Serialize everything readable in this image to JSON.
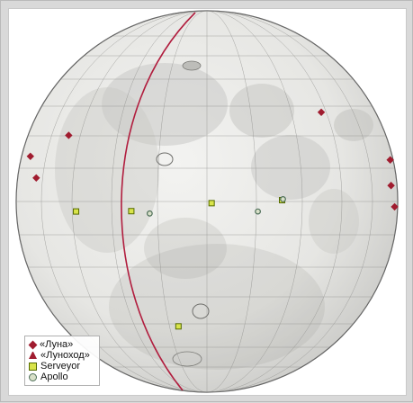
{
  "colors": {
    "background": "#d9d9d9",
    "panel": "#ffffff",
    "globe_fill": "#e9e9e7",
    "globe_stroke": "#5c5c5c",
    "mare": "#b8b8b6",
    "meridian": "#b11d3e",
    "luna": "#a01c2f",
    "lunokhod": "#a01c2f",
    "surveyor_fill": "#d9e44a",
    "surveyor_stroke": "#556b00",
    "apollo_fill": "#d8e0c8",
    "apollo_stroke": "#4f6f59"
  },
  "map": {
    "projection": "orthographic view of the lunar near side",
    "graticule": true
  },
  "legend": {
    "items": [
      {
        "key": "luna",
        "symbol": "diamond",
        "label": "«Луна»"
      },
      {
        "key": "lunokhod",
        "symbol": "triangle",
        "label": "«Луноход»"
      },
      {
        "key": "surveyor",
        "symbol": "square",
        "label": "Serveyor"
      },
      {
        "key": "apollo",
        "symbol": "circle",
        "label": "Apollo"
      }
    ]
  },
  "landing_sites": {
    "luna": [
      {
        "lon": -50.6,
        "lat": 20.3
      },
      {
        "lon": -64.4,
        "lat": 7.1
      },
      {
        "lon": -72.3,
        "lat": 13.7
      },
      {
        "lon": 42.7,
        "lat": 27.9
      },
      {
        "lon": 79.9,
        "lat": 12.6
      },
      {
        "lon": 75.6,
        "lat": 4.8
      },
      {
        "lon": 79.8,
        "lat": -1.6
      }
    ],
    "lunokhod": [],
    "surveyor": [
      {
        "lon": -43.4,
        "lat": -3.0
      },
      {
        "lon": -23.4,
        "lat": -2.9
      },
      {
        "lon": 1.4,
        "lat": -0.5
      },
      {
        "lon": 23.2,
        "lat": 0.4
      },
      {
        "lon": -11.4,
        "lat": -40.9
      }
    ],
    "apollo": [
      {
        "lon": -17.5,
        "lat": -3.6
      },
      {
        "lon": 23.5,
        "lat": 0.7
      },
      {
        "lon": 15.5,
        "lat": -3.0
      }
    ]
  }
}
